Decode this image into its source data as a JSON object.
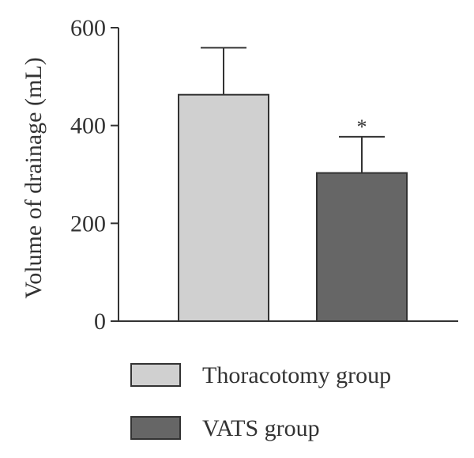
{
  "chart_data": {
    "type": "bar",
    "categories": [
      "Thoracotomy group",
      "VATS group"
    ],
    "series": [
      {
        "name": "Thoracotomy group",
        "values": [
          463,
          null
        ],
        "error": [
          96,
          null
        ],
        "color": "#d0d0d0"
      },
      {
        "name": "VATS group",
        "values": [
          null,
          303
        ],
        "error": [
          null,
          74
        ],
        "color": "#666666"
      }
    ],
    "values": [
      463,
      303
    ],
    "errors": [
      96,
      74
    ],
    "ylabel": "Volume of drainage (mL)",
    "xlabel": "",
    "title": "",
    "ylim": [
      0,
      600
    ],
    "yticks": [
      0,
      200,
      400,
      600
    ],
    "significance_marks": [
      null,
      "*"
    ],
    "legend": {
      "placement": "bottom-left",
      "entries": [
        {
          "label": "Thoracotomy group",
          "color": "#d0d0d0"
        },
        {
          "label": "VATS group",
          "color": "#666666"
        }
      ]
    },
    "grid": false
  }
}
